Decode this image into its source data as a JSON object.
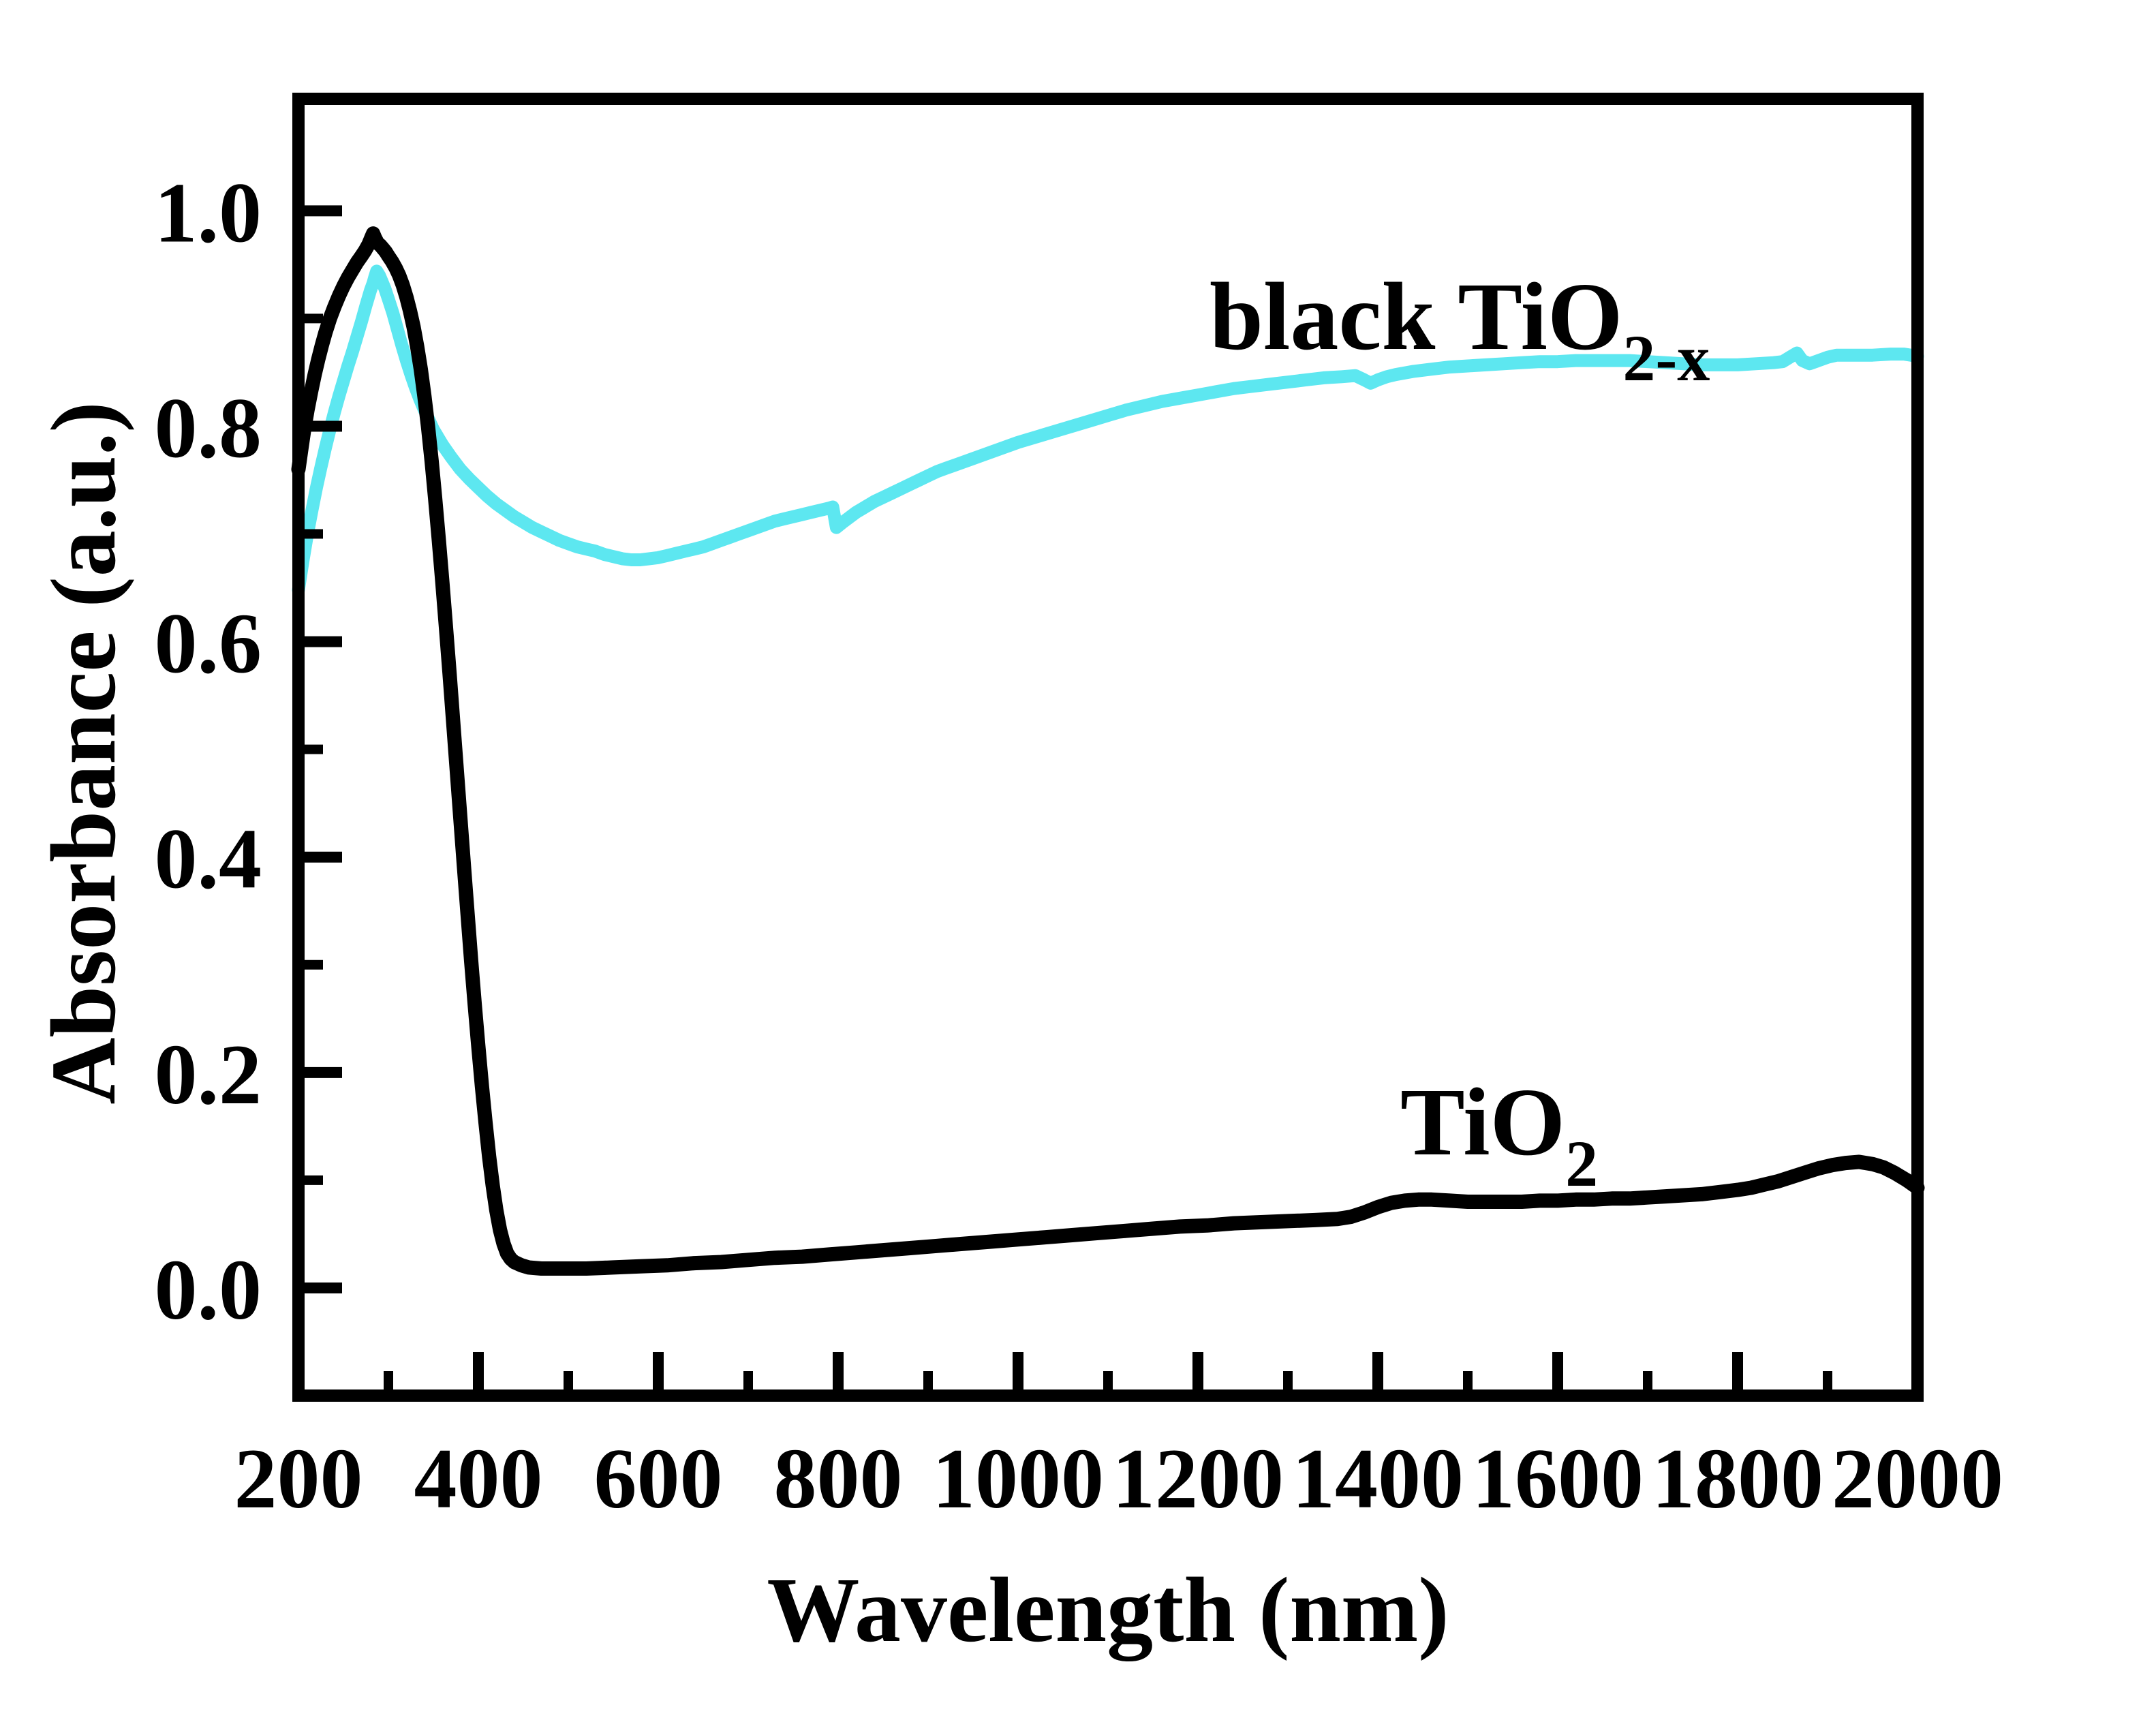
{
  "figure": {
    "background": "#ffffff",
    "plot_border_color": "#000000",
    "x_axis": {
      "title": "Wavelength (nm)",
      "min": 200,
      "max": 2000,
      "major_tick_values": [
        200,
        400,
        600,
        800,
        1000,
        1200,
        1400,
        1600,
        1800,
        2000
      ],
      "major_tick_labels": [
        "200",
        "400",
        "600",
        "800",
        "1000",
        "1200",
        "1400",
        "1600",
        "1800",
        "2000"
      ],
      "minor_tick_values": [
        300,
        500,
        700,
        900,
        1100,
        1300,
        1500,
        1700,
        1900
      ]
    },
    "y_axis": {
      "title": "Absorbance (a.u.)",
      "min": -0.1,
      "max": 1.104,
      "major_tick_values": [
        0.0,
        0.2,
        0.4,
        0.6,
        0.8,
        1.0
      ],
      "major_tick_labels": [
        "0.0",
        "0.2",
        "0.4",
        "0.6",
        "0.8",
        "1.0"
      ],
      "minor_tick_values": [
        0.1,
        0.3,
        0.5,
        0.7,
        0.9
      ]
    },
    "annotations": [
      {
        "text": "black TiO",
        "subscript": "2-x",
        "color": "#000000"
      },
      {
        "text": "TiO",
        "subscript": "2",
        "color": "#000000"
      }
    ]
  },
  "chart_data": {
    "type": "line",
    "title": "",
    "xlabel": "Wavelength (nm)",
    "ylabel": "Absorbance (a.u.)",
    "xlim": [
      200,
      2000
    ],
    "ylim": [
      -0.1,
      1.104
    ],
    "grid": false,
    "legend_position": "inline-annotations",
    "series": [
      {
        "name": "black TiO2-x",
        "color": "#5DE7F0",
        "stroke_width": 19,
        "points": [
          [
            200,
            0.648
          ],
          [
            205,
            0.675
          ],
          [
            210,
            0.7
          ],
          [
            215,
            0.722
          ],
          [
            220,
            0.743
          ],
          [
            225,
            0.762
          ],
          [
            230,
            0.78
          ],
          [
            235,
            0.797
          ],
          [
            240,
            0.813
          ],
          [
            245,
            0.828
          ],
          [
            250,
            0.842
          ],
          [
            255,
            0.856
          ],
          [
            260,
            0.869
          ],
          [
            265,
            0.883
          ],
          [
            270,
            0.897
          ],
          [
            275,
            0.912
          ],
          [
            280,
            0.926
          ],
          [
            283,
            0.933
          ],
          [
            285,
            0.939
          ],
          [
            287,
            0.944
          ],
          [
            290,
            0.94
          ],
          [
            293,
            0.934
          ],
          [
            296,
            0.928
          ],
          [
            300,
            0.918
          ],
          [
            305,
            0.905
          ],
          [
            310,
            0.89
          ],
          [
            315,
            0.875
          ],
          [
            320,
            0.861
          ],
          [
            325,
            0.848
          ],
          [
            330,
            0.836
          ],
          [
            335,
            0.825
          ],
          [
            340,
            0.815
          ],
          [
            345,
            0.806
          ],
          [
            350,
            0.797
          ],
          [
            355,
            0.79
          ],
          [
            360,
            0.783
          ],
          [
            370,
            0.771
          ],
          [
            380,
            0.76
          ],
          [
            390,
            0.751
          ],
          [
            400,
            0.743
          ],
          [
            410,
            0.735
          ],
          [
            420,
            0.728
          ],
          [
            430,
            0.722
          ],
          [
            440,
            0.716
          ],
          [
            450,
            0.711
          ],
          [
            460,
            0.706
          ],
          [
            470,
            0.702
          ],
          [
            480,
            0.698
          ],
          [
            490,
            0.694
          ],
          [
            500,
            0.691
          ],
          [
            510,
            0.688
          ],
          [
            520,
            0.686
          ],
          [
            530,
            0.684
          ],
          [
            540,
            0.681
          ],
          [
            550,
            0.679
          ],
          [
            560,
            0.677
          ],
          [
            570,
            0.676
          ],
          [
            580,
            0.676
          ],
          [
            590,
            0.677
          ],
          [
            600,
            0.678
          ],
          [
            610,
            0.68
          ],
          [
            620,
            0.682
          ],
          [
            630,
            0.684
          ],
          [
            640,
            0.686
          ],
          [
            650,
            0.688
          ],
          [
            660,
            0.691
          ],
          [
            670,
            0.694
          ],
          [
            680,
            0.697
          ],
          [
            690,
            0.7
          ],
          [
            700,
            0.703
          ],
          [
            710,
            0.706
          ],
          [
            720,
            0.709
          ],
          [
            730,
            0.712
          ],
          [
            740,
            0.714
          ],
          [
            750,
            0.716
          ],
          [
            760,
            0.718
          ],
          [
            770,
            0.72
          ],
          [
            780,
            0.722
          ],
          [
            790,
            0.724
          ],
          [
            794,
            0.725
          ],
          [
            798,
            0.706
          ],
          [
            804,
            0.71
          ],
          [
            812,
            0.715
          ],
          [
            820,
            0.72
          ],
          [
            830,
            0.725
          ],
          [
            840,
            0.73
          ],
          [
            850,
            0.734
          ],
          [
            860,
            0.738
          ],
          [
            870,
            0.742
          ],
          [
            880,
            0.746
          ],
          [
            890,
            0.75
          ],
          [
            900,
            0.754
          ],
          [
            910,
            0.758
          ],
          [
            920,
            0.761
          ],
          [
            930,
            0.764
          ],
          [
            940,
            0.767
          ],
          [
            950,
            0.77
          ],
          [
            960,
            0.773
          ],
          [
            970,
            0.776
          ],
          [
            980,
            0.779
          ],
          [
            990,
            0.782
          ],
          [
            1000,
            0.785
          ],
          [
            1020,
            0.79
          ],
          [
            1040,
            0.795
          ],
          [
            1060,
            0.8
          ],
          [
            1080,
            0.805
          ],
          [
            1100,
            0.81
          ],
          [
            1120,
            0.815
          ],
          [
            1140,
            0.819
          ],
          [
            1160,
            0.823
          ],
          [
            1180,
            0.826
          ],
          [
            1200,
            0.829
          ],
          [
            1220,
            0.832
          ],
          [
            1240,
            0.835
          ],
          [
            1260,
            0.837
          ],
          [
            1280,
            0.839
          ],
          [
            1300,
            0.841
          ],
          [
            1320,
            0.843
          ],
          [
            1340,
            0.845
          ],
          [
            1360,
            0.846
          ],
          [
            1375,
            0.847
          ],
          [
            1385,
            0.843
          ],
          [
            1392,
            0.84
          ],
          [
            1400,
            0.843
          ],
          [
            1410,
            0.846
          ],
          [
            1420,
            0.848
          ],
          [
            1440,
            0.851
          ],
          [
            1460,
            0.853
          ],
          [
            1480,
            0.855
          ],
          [
            1500,
            0.856
          ],
          [
            1520,
            0.857
          ],
          [
            1540,
            0.858
          ],
          [
            1560,
            0.859
          ],
          [
            1580,
            0.86
          ],
          [
            1600,
            0.86
          ],
          [
            1620,
            0.861
          ],
          [
            1640,
            0.861
          ],
          [
            1660,
            0.861
          ],
          [
            1680,
            0.861
          ],
          [
            1700,
            0.86
          ],
          [
            1720,
            0.859
          ],
          [
            1740,
            0.858
          ],
          [
            1760,
            0.857
          ],
          [
            1780,
            0.857
          ],
          [
            1800,
            0.857
          ],
          [
            1820,
            0.858
          ],
          [
            1840,
            0.859
          ],
          [
            1850,
            0.86
          ],
          [
            1858,
            0.864
          ],
          [
            1866,
            0.868
          ],
          [
            1872,
            0.861
          ],
          [
            1880,
            0.858
          ],
          [
            1890,
            0.861
          ],
          [
            1900,
            0.864
          ],
          [
            1910,
            0.866
          ],
          [
            1930,
            0.866
          ],
          [
            1950,
            0.866
          ],
          [
            1970,
            0.867
          ],
          [
            1985,
            0.867
          ],
          [
            2000,
            0.865
          ]
        ]
      },
      {
        "name": "TiO2",
        "color": "#000000",
        "stroke_width": 21,
        "points": [
          [
            200,
            0.76
          ],
          [
            203,
            0.778
          ],
          [
            206,
            0.795
          ],
          [
            210,
            0.815
          ],
          [
            214,
            0.832
          ],
          [
            218,
            0.848
          ],
          [
            222,
            0.862
          ],
          [
            226,
            0.875
          ],
          [
            230,
            0.887
          ],
          [
            235,
            0.9
          ],
          [
            240,
            0.911
          ],
          [
            245,
            0.921
          ],
          [
            250,
            0.93
          ],
          [
            255,
            0.938
          ],
          [
            260,
            0.945
          ],
          [
            265,
            0.952
          ],
          [
            270,
            0.958
          ],
          [
            274,
            0.963
          ],
          [
            278,
            0.969
          ],
          [
            281,
            0.975
          ],
          [
            283,
            0.979
          ],
          [
            285,
            0.975
          ],
          [
            288,
            0.97
          ],
          [
            291,
            0.968
          ],
          [
            294,
            0.965
          ],
          [
            297,
            0.962
          ],
          [
            300,
            0.958
          ],
          [
            304,
            0.953
          ],
          [
            308,
            0.947
          ],
          [
            312,
            0.94
          ],
          [
            316,
            0.931
          ],
          [
            320,
            0.92
          ],
          [
            324,
            0.907
          ],
          [
            328,
            0.892
          ],
          [
            332,
            0.874
          ],
          [
            336,
            0.853
          ],
          [
            340,
            0.828
          ],
          [
            344,
            0.8
          ],
          [
            348,
            0.768
          ],
          [
            352,
            0.733
          ],
          [
            356,
            0.695
          ],
          [
            360,
            0.655
          ],
          [
            364,
            0.613
          ],
          [
            368,
            0.57
          ],
          [
            372,
            0.526
          ],
          [
            376,
            0.481
          ],
          [
            380,
            0.436
          ],
          [
            384,
            0.391
          ],
          [
            388,
            0.347
          ],
          [
            392,
            0.304
          ],
          [
            396,
            0.263
          ],
          [
            400,
            0.224
          ],
          [
            404,
            0.187
          ],
          [
            408,
            0.153
          ],
          [
            412,
            0.122
          ],
          [
            416,
            0.095
          ],
          [
            420,
            0.072
          ],
          [
            424,
            0.054
          ],
          [
            428,
            0.041
          ],
          [
            432,
            0.032
          ],
          [
            436,
            0.027
          ],
          [
            440,
            0.024
          ],
          [
            448,
            0.021
          ],
          [
            456,
            0.019
          ],
          [
            470,
            0.018
          ],
          [
            490,
            0.018
          ],
          [
            520,
            0.018
          ],
          [
            550,
            0.019
          ],
          [
            580,
            0.02
          ],
          [
            610,
            0.021
          ],
          [
            640,
            0.023
          ],
          [
            670,
            0.024
          ],
          [
            700,
            0.026
          ],
          [
            730,
            0.028
          ],
          [
            760,
            0.029
          ],
          [
            790,
            0.031
          ],
          [
            820,
            0.033
          ],
          [
            850,
            0.035
          ],
          [
            880,
            0.037
          ],
          [
            910,
            0.039
          ],
          [
            940,
            0.041
          ],
          [
            970,
            0.043
          ],
          [
            1000,
            0.045
          ],
          [
            1030,
            0.047
          ],
          [
            1060,
            0.049
          ],
          [
            1090,
            0.051
          ],
          [
            1120,
            0.053
          ],
          [
            1150,
            0.055
          ],
          [
            1180,
            0.057
          ],
          [
            1210,
            0.058
          ],
          [
            1240,
            0.06
          ],
          [
            1270,
            0.061
          ],
          [
            1300,
            0.062
          ],
          [
            1330,
            0.063
          ],
          [
            1355,
            0.064
          ],
          [
            1370,
            0.066
          ],
          [
            1385,
            0.07
          ],
          [
            1400,
            0.075
          ],
          [
            1415,
            0.079
          ],
          [
            1430,
            0.081
          ],
          [
            1445,
            0.082
          ],
          [
            1460,
            0.082
          ],
          [
            1480,
            0.081
          ],
          [
            1500,
            0.08
          ],
          [
            1520,
            0.08
          ],
          [
            1540,
            0.08
          ],
          [
            1560,
            0.08
          ],
          [
            1580,
            0.081
          ],
          [
            1600,
            0.081
          ],
          [
            1620,
            0.082
          ],
          [
            1640,
            0.082
          ],
          [
            1660,
            0.083
          ],
          [
            1680,
            0.083
          ],
          [
            1700,
            0.084
          ],
          [
            1720,
            0.085
          ],
          [
            1740,
            0.086
          ],
          [
            1760,
            0.087
          ],
          [
            1780,
            0.089
          ],
          [
            1800,
            0.091
          ],
          [
            1815,
            0.093
          ],
          [
            1830,
            0.096
          ],
          [
            1845,
            0.099
          ],
          [
            1860,
            0.103
          ],
          [
            1875,
            0.107
          ],
          [
            1890,
            0.111
          ],
          [
            1905,
            0.114
          ],
          [
            1920,
            0.116
          ],
          [
            1935,
            0.117
          ],
          [
            1950,
            0.115
          ],
          [
            1962,
            0.112
          ],
          [
            1974,
            0.107
          ],
          [
            1988,
            0.1
          ],
          [
            2000,
            0.093
          ]
        ]
      }
    ]
  }
}
